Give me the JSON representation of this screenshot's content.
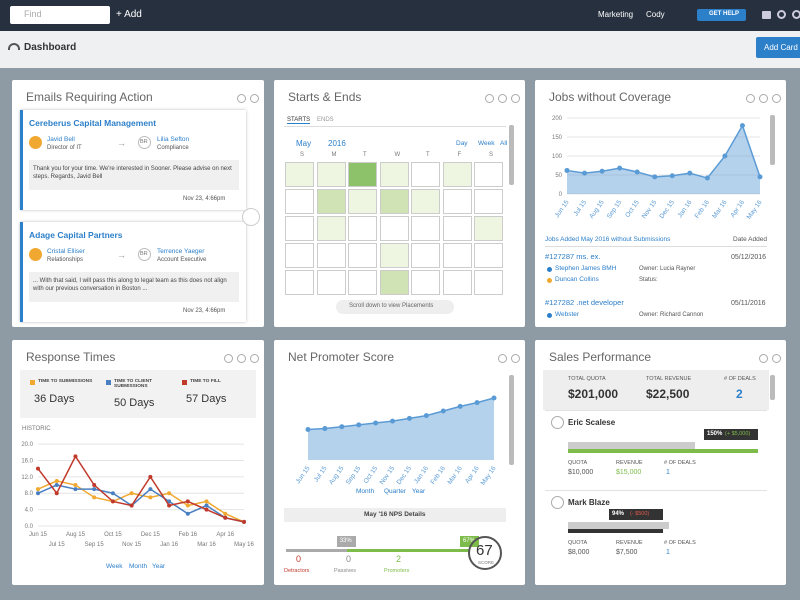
{
  "topbar": {
    "search_placeholder": "Find",
    "add": "+ Add",
    "menu": "Marketing",
    "user": "Cody",
    "help": "GET HELP"
  },
  "header": {
    "title": "Dashboard",
    "button": "Add Card"
  },
  "emails": {
    "title": "Emails Requiring Action",
    "items": [
      {
        "company": "Cereberus Capital Management",
        "from_name": "Javid Bell",
        "from_role": "Director of IT",
        "to_initials": "BR",
        "to_name": "Lilia Sefton",
        "to_role": "Compliance",
        "body": "Thank you for your time. We're interested in Sooner. Please advise on next steps. Regards, Javid Bell",
        "date": "Nov 23, 4:66pm"
      },
      {
        "company": "Adage Capital Partners",
        "from_name": "Cristal Elliser",
        "from_role": "Relationships",
        "to_initials": "BR",
        "to_name": "Terrence Yaeger",
        "to_role": "Account Executive",
        "body": "... With that said, I will pass this along to legal team as this does not align with our previous conversation in Boston ...",
        "date": "Nov 23, 4:66pm"
      }
    ]
  },
  "starts": {
    "title": "Starts & Ends",
    "tabs": [
      "STARTS",
      "ENDS"
    ],
    "month": "May",
    "year": "2016",
    "views": [
      "Day",
      "Week",
      "All"
    ],
    "weekdays": [
      "S",
      "M",
      "T",
      "W",
      "T",
      "F",
      "S"
    ],
    "levels": [
      [
        1,
        1,
        3,
        1,
        0,
        1,
        0
      ],
      [
        0,
        2,
        1,
        2,
        1,
        0,
        0
      ],
      [
        0,
        1,
        0,
        0,
        0,
        0,
        1
      ],
      [
        0,
        0,
        0,
        1,
        0,
        0,
        0
      ],
      [
        0,
        0,
        0,
        2,
        0,
        0,
        0
      ]
    ],
    "scroll": "Scroll down to view Placements"
  },
  "jobs": {
    "title": "Jobs without Coverage",
    "chart": {
      "type": "area",
      "categories": [
        "Jun 15",
        "Jul 15",
        "Aug 15",
        "Sep 15",
        "Oct 15",
        "Nov 15",
        "Dec 15",
        "Jan 16",
        "Feb 16",
        "Mar 16",
        "Apr 16",
        "May 16"
      ],
      "values": [
        62,
        55,
        60,
        68,
        58,
        45,
        48,
        55,
        42,
        100,
        180,
        45
      ],
      "color": "#5b9bd5",
      "ylim": [
        0,
        200
      ],
      "yticks": [
        0,
        50,
        100,
        150,
        200
      ]
    },
    "list_title": "Jobs Added May 2016 without Submissions",
    "date_header": "Date Added",
    "list": [
      {
        "job": "#127287 ms. ex.",
        "contacts": [
          "Stephen James BMH",
          "Duncan Collins"
        ],
        "owner": "Owner: Lucia Rayner",
        "status": "Status:",
        "date": "05/12/2016"
      },
      {
        "job": "#127282 .net developer",
        "contacts": [
          "Webster"
        ],
        "owner": "Owner: Richard Cannon",
        "status": "",
        "date": "05/11/2016"
      }
    ]
  },
  "response": {
    "title": "Response Times",
    "historic": "HISTORIC",
    "chart": {
      "type": "line",
      "categories": [
        "Jun 15",
        "Jul 15",
        "Aug 15",
        "Sep 15",
        "Oct 15",
        "Nov 15",
        "Dec 15",
        "Jan 16",
        "Feb 16",
        "Mar 16",
        "Apr 16",
        "May 16"
      ],
      "series": [
        {
          "name": "TIME TO SUBMISSIONS",
          "summary": "36 Days",
          "color": "#f0a830",
          "values": [
            9,
            11,
            10,
            7,
            6,
            8,
            7,
            8,
            5,
            6,
            3,
            1
          ]
        },
        {
          "name": "TIME TO CLIENT SUBMISSIONS",
          "summary": "50 Days",
          "color": "#4a7fc1",
          "values": [
            8,
            10,
            9,
            9,
            8,
            5,
            9,
            6,
            3,
            5,
            2,
            1
          ]
        },
        {
          "name": "TIME TO FILL",
          "summary": "57 Days",
          "color": "#c0392b",
          "values": [
            14,
            8,
            17,
            10,
            6,
            5,
            12,
            5,
            6,
            4,
            2,
            1
          ]
        }
      ],
      "ylim": [
        0,
        21
      ],
      "yticks": [
        {
          "value": 0,
          "label": "0.0"
        },
        {
          "value": 4,
          "label": "4.0"
        },
        {
          "value": 8,
          "label": "8.0"
        },
        {
          "value": 12,
          "label": "12.0"
        },
        {
          "value": 16,
          "label": "16.0"
        },
        {
          "value": 20,
          "label": "20.0"
        }
      ]
    },
    "periods": [
      "Week",
      "Month",
      "Year"
    ]
  },
  "nps": {
    "title": "Net Promoter Score",
    "chart": {
      "type": "area",
      "categories": [
        "Jun 15",
        "Jul 15",
        "Aug 15",
        "Sep 15",
        "Oct 15",
        "Nov 15",
        "Dec 15",
        "Jan 16",
        "Feb 16",
        "Mar 16",
        "Apr 16",
        "May 16"
      ],
      "values": [
        33,
        34,
        36,
        38,
        40,
        42,
        45,
        48,
        53,
        58,
        62,
        67
      ],
      "color": "#5b9bd5",
      "ylim": [
        0,
        80
      ]
    },
    "periods": [
      "Month",
      "Quarter",
      "Year"
    ],
    "details_title": "May '16 NPS Details",
    "split": [
      {
        "value": 33,
        "label": "33%"
      },
      {
        "value": 67,
        "label": "67%"
      }
    ],
    "groups": [
      {
        "count": "0",
        "name": "Detractors"
      },
      {
        "count": "0",
        "name": "Passives"
      },
      {
        "count": "2",
        "name": "Promoters"
      }
    ],
    "score": "67",
    "score_label": "SCORE"
  },
  "sales": {
    "title": "Sales Performance",
    "totals": [
      {
        "label": "TOTAL QUOTA",
        "value": "$201,000"
      },
      {
        "label": "TOTAL REVENUE",
        "value": "$22,500"
      },
      {
        "label": "# OF DEALS",
        "value": "2"
      }
    ],
    "column_labels": [
      "QUOTA",
      "REVENUE",
      "# OF DEALS"
    ],
    "people": [
      {
        "name": "Eric Scalese",
        "quota": {
          "value": 10000,
          "label": "$10,000"
        },
        "revenue": {
          "value": 15000,
          "label": "$15,000"
        },
        "deals": "1",
        "pct": "150%",
        "diff": "(+ $5,000)"
      },
      {
        "name": "Mark Blaze",
        "quota": {
          "value": 8000,
          "label": "$8,000"
        },
        "revenue": {
          "value": 7500,
          "label": "$7,500"
        },
        "deals": "1",
        "pct": "94%",
        "diff": "(- $500)"
      }
    ]
  }
}
